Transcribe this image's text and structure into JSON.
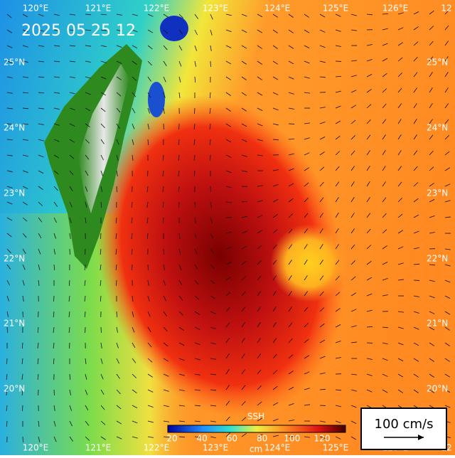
{
  "title": "2025 05 25 12",
  "lon_labels": [
    "120°E",
    "121°E",
    "122°E",
    "123°E",
    "124°E",
    "125°E",
    "126°E",
    "12"
  ],
  "lat_labels": [
    "25°N",
    "24°N",
    "23°N",
    "22°N",
    "21°N",
    "20°N"
  ],
  "lat_labels_right": [
    "25°N",
    "24°N",
    "23°N",
    "22°N",
    "21°N",
    "20°N"
  ],
  "colorbar": {
    "label": "SSH",
    "ticks": [
      20,
      40,
      60,
      80,
      100,
      120
    ],
    "unit": "cm"
  },
  "scale_label": "100 cm/s"
}
